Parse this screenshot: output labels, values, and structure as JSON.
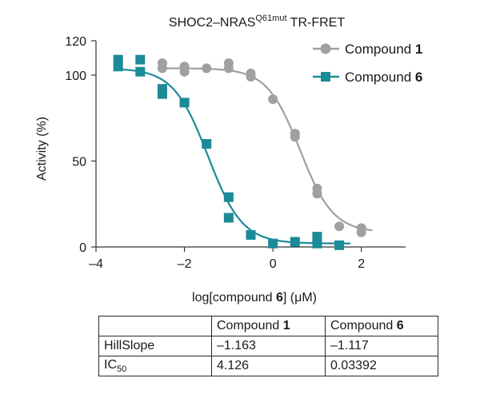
{
  "chart_data": {
    "type": "scatter",
    "title": {
      "prefix": "SHOC2–NRAS",
      "superscript": "Q61mut",
      "suffix": " TR-FRET"
    },
    "xlabel": {
      "prefix": "log[compound ",
      "bold": "6",
      "suffix": "] (μM)"
    },
    "ylabel": "Activity (%)",
    "xlim": [
      -4,
      3
    ],
    "ylim": [
      0,
      120
    ],
    "xticks": [
      -4,
      -2,
      0,
      2
    ],
    "xtick_labels": [
      "–4",
      "–2",
      "0",
      "2"
    ],
    "yticks": [
      0,
      50,
      100,
      120
    ],
    "ytick_labels": [
      "0",
      "50",
      "100",
      "120"
    ],
    "legend_position": "top-right",
    "series": [
      {
        "name": "Compound 1",
        "label_prefix": "Compound ",
        "label_bold": "1",
        "color": "#a0a0a0",
        "marker": "circle",
        "fit": {
          "type": "four-parameter-logistic",
          "top": 104,
          "bottom": 8.5,
          "log_ic50": 0.6156,
          "hill_slope": -1.163
        },
        "points": [
          {
            "x": -2.5,
            "y": 107
          },
          {
            "x": -2.5,
            "y": 104
          },
          {
            "x": -2.0,
            "y": 105
          },
          {
            "x": -2.0,
            "y": 102
          },
          {
            "x": -1.5,
            "y": 104
          },
          {
            "x": -1.0,
            "y": 107
          },
          {
            "x": -1.0,
            "y": 104
          },
          {
            "x": -0.5,
            "y": 101
          },
          {
            "x": -0.5,
            "y": 99
          },
          {
            "x": 0.0,
            "y": 86
          },
          {
            "x": 0.5,
            "y": 66
          },
          {
            "x": 0.5,
            "y": 64
          },
          {
            "x": 1.0,
            "y": 34
          },
          {
            "x": 1.0,
            "y": 31
          },
          {
            "x": 1.5,
            "y": 12
          },
          {
            "x": 2.0,
            "y": 11
          },
          {
            "x": 2.0,
            "y": 8.5
          }
        ]
      },
      {
        "name": "Compound 6",
        "label_prefix": "Compound ",
        "label_bold": "6",
        "color": "#1a8b97",
        "marker": "square",
        "fit": {
          "type": "four-parameter-logistic",
          "top": 104,
          "bottom": 2,
          "log_ic50": -1.4695,
          "hill_slope": -1.117
        },
        "points": [
          {
            "x": -3.5,
            "y": 109
          },
          {
            "x": -3.5,
            "y": 105
          },
          {
            "x": -3.0,
            "y": 109
          },
          {
            "x": -3.0,
            "y": 102
          },
          {
            "x": -2.5,
            "y": 92
          },
          {
            "x": -2.5,
            "y": 89
          },
          {
            "x": -2.0,
            "y": 84
          },
          {
            "x": -1.5,
            "y": 60
          },
          {
            "x": -1.0,
            "y": 29
          },
          {
            "x": -1.0,
            "y": 17
          },
          {
            "x": -0.5,
            "y": 7
          },
          {
            "x": 0.0,
            "y": 2
          },
          {
            "x": 0.5,
            "y": 3
          },
          {
            "x": 1.0,
            "y": 6
          },
          {
            "x": 1.0,
            "y": 2
          },
          {
            "x": 1.5,
            "y": 1
          }
        ]
      }
    ]
  },
  "table": {
    "header": [
      "",
      "Compound ",
      "Compound "
    ],
    "header_bold": [
      "",
      "1",
      "6"
    ],
    "rows": [
      {
        "label": "HillSlope",
        "label_sub": "",
        "values": [
          "–1.163",
          "–1.117"
        ]
      },
      {
        "label": "IC",
        "label_sub": "50",
        "values": [
          "4.126",
          "0.03392"
        ]
      }
    ]
  }
}
